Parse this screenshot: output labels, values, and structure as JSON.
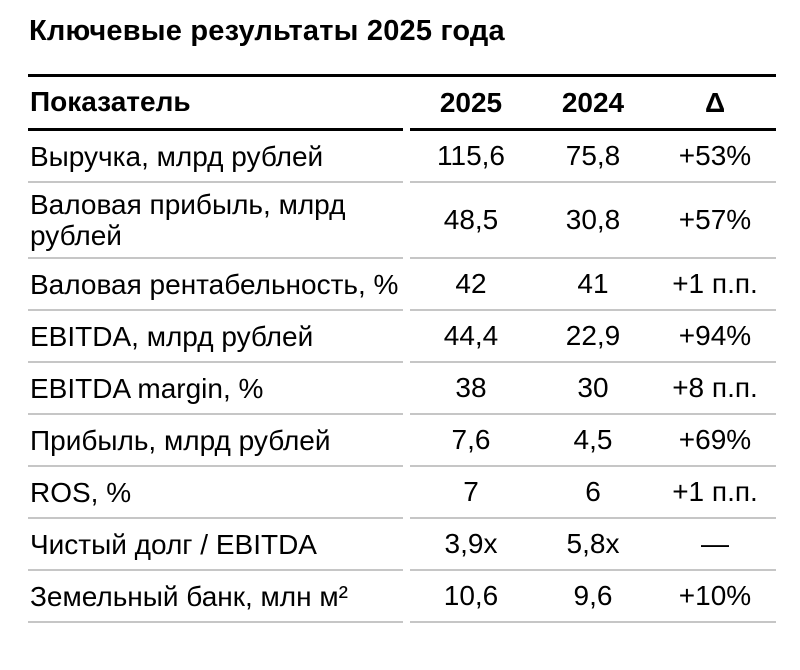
{
  "page": {
    "background": "#ffffff",
    "text_color": "#000000",
    "header_line_color": "#000000",
    "separator_line_color": "#c6c6c6"
  },
  "title": "Ключевые результаты 2025 года",
  "chart_data": {
    "type": "table",
    "title": "Ключевые результаты 2025 года",
    "columns": [
      "Показатель",
      "2025",
      "2024",
      "Δ"
    ],
    "rows": [
      [
        "Выручка, млрд рублей",
        "115,6",
        "75,8",
        "+53%"
      ],
      [
        "Валовая прибыль, млрд рублей",
        "48,5",
        "30,8",
        "+57%"
      ],
      [
        "Валовая рентабельность, %",
        "42",
        "41",
        "+1 п.п."
      ],
      [
        "EBITDA, млрд рублей",
        "44,4",
        "22,9",
        "+94%"
      ],
      [
        "EBITDA margin, %",
        "38",
        "30",
        "+8 п.п."
      ],
      [
        "Прибыль, млрд рублей",
        "7,6",
        "4,5",
        "+69%"
      ],
      [
        "ROS, %",
        "7",
        "6",
        "+1 п.п."
      ],
      [
        "Чистый долг / EBITDA",
        "3,9x",
        "5,8x",
        "—"
      ],
      [
        "Земельный банк, млн м²",
        "10,6",
        "9,6",
        "+10%"
      ]
    ],
    "layout": {
      "label_alignment": "left",
      "value_alignment": "center",
      "header_bold": true
    }
  }
}
